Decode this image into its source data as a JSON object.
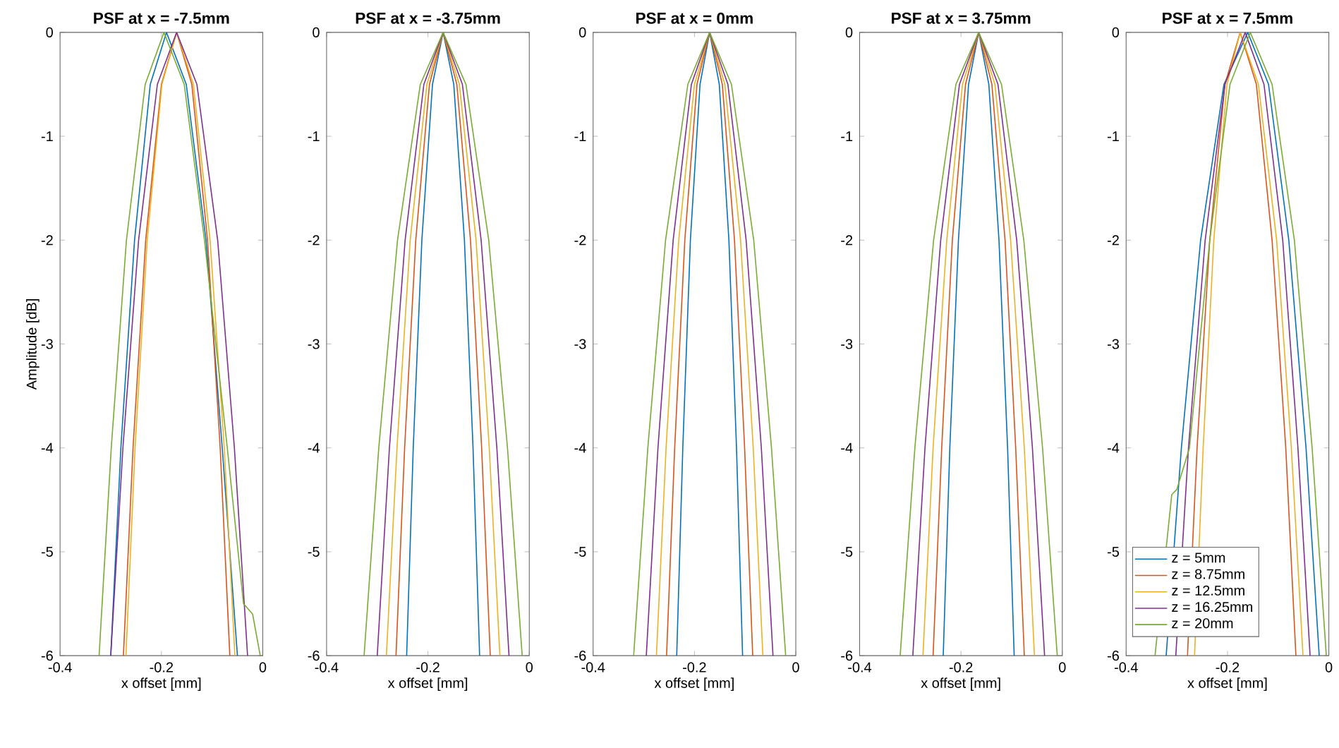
{
  "chart_data": [
    {
      "type": "line",
      "title": "PSF at x = -7.5mm",
      "xlabel": "x offset [mm]",
      "ylabel": "Amplitude [dB]",
      "xlim": [
        -0.4,
        0
      ],
      "ylim": [
        -6,
        0
      ],
      "xticks": [
        -0.4,
        -0.2,
        0
      ],
      "yticks": [
        -6,
        -5,
        -4,
        -3,
        -2,
        -1,
        0
      ],
      "series": [
        {
          "color": "#0072bd",
          "x": [
            -0.3,
            -0.28,
            -0.253,
            -0.222,
            -0.19,
            -0.151,
            -0.112,
            -0.08,
            -0.05
          ],
          "values": [
            -6,
            -4,
            -2,
            -0.5,
            0,
            -0.5,
            -2,
            -4,
            -6
          ]
        },
        {
          "color": "#d95319",
          "x": [
            -0.275,
            -0.256,
            -0.231,
            -0.2,
            -0.17,
            -0.14,
            -0.109,
            -0.084,
            -0.065
          ],
          "values": [
            -6,
            -4,
            -2,
            -0.5,
            0,
            -0.5,
            -2,
            -4,
            -6
          ]
        },
        {
          "color": "#edb120",
          "x": [
            -0.27,
            -0.252,
            -0.228,
            -0.199,
            -0.17,
            -0.137,
            -0.104,
            -0.076,
            -0.055
          ],
          "values": [
            -6,
            -4,
            -2,
            -0.5,
            0,
            -0.5,
            -2,
            -4,
            -6
          ]
        },
        {
          "color": "#7e2f8e",
          "x": [
            -0.3,
            -0.276,
            -0.245,
            -0.208,
            -0.17,
            -0.13,
            -0.089,
            -0.056,
            -0.03
          ],
          "values": [
            -6,
            -4,
            -2,
            -0.5,
            0,
            -0.5,
            -2,
            -4,
            -6
          ]
        },
        {
          "color": "#77ac30",
          "x": [
            -0.323,
            -0.299,
            -0.269,
            -0.232,
            -0.195,
            -0.155,
            -0.115,
            -0.07,
            -0.038,
            -0.02,
            -0.005
          ],
          "values": [
            -6,
            -4,
            -2,
            -0.5,
            0,
            -0.5,
            -2,
            -4,
            -5.5,
            -5.6,
            -6
          ]
        }
      ]
    },
    {
      "type": "line",
      "title": "PSF at x = -3.75mm",
      "xlabel": "x offset [mm]",
      "xlim": [
        -0.4,
        0
      ],
      "ylim": [
        -6,
        0
      ],
      "xticks": [
        -0.4,
        -0.2,
        0
      ],
      "yticks": [
        -6,
        -5,
        -4,
        -3,
        -2,
        -1,
        0
      ],
      "series": [
        {
          "color": "#0072bd",
          "x": [
            -0.242,
            -0.229,
            -0.212,
            -0.191,
            -0.17,
            -0.149,
            -0.128,
            -0.111,
            -0.098
          ],
          "values": [
            -6,
            -4,
            -2,
            -0.5,
            0,
            -0.5,
            -2,
            -4,
            -6
          ]
        },
        {
          "color": "#d95319",
          "x": [
            -0.263,
            -0.246,
            -0.224,
            -0.197,
            -0.17,
            -0.143,
            -0.116,
            -0.094,
            -0.077
          ],
          "values": [
            -6,
            -4,
            -2,
            -0.5,
            0,
            -0.5,
            -2,
            -4,
            -6
          ]
        },
        {
          "color": "#edb120",
          "x": [
            -0.282,
            -0.261,
            -0.235,
            -0.202,
            -0.17,
            -0.138,
            -0.105,
            -0.079,
            -0.058
          ],
          "values": [
            -6,
            -4,
            -2,
            -0.5,
            0,
            -0.5,
            -2,
            -4,
            -6
          ]
        },
        {
          "color": "#7e2f8e",
          "x": [
            -0.3,
            -0.276,
            -0.245,
            -0.208,
            -0.17,
            -0.132,
            -0.095,
            -0.064,
            -0.04
          ],
          "values": [
            -6,
            -4,
            -2,
            -0.5,
            0,
            -0.5,
            -2,
            -4,
            -6
          ]
        },
        {
          "color": "#77ac30",
          "x": [
            -0.326,
            -0.297,
            -0.26,
            -0.215,
            -0.17,
            -0.125,
            -0.08,
            -0.043,
            -0.014
          ],
          "values": [
            -6,
            -4,
            -2,
            -0.5,
            0,
            -0.5,
            -2,
            -4,
            -6
          ]
        }
      ]
    },
    {
      "type": "line",
      "title": "PSF at x = 0mm",
      "xlabel": "x offset [mm]",
      "xlim": [
        -0.4,
        0
      ],
      "ylim": [
        -6,
        0
      ],
      "xticks": [
        -0.4,
        -0.2,
        0
      ],
      "yticks": [
        -6,
        -5,
        -4,
        -3,
        -2,
        -1,
        0
      ],
      "series": [
        {
          "color": "#0072bd",
          "x": [
            -0.235,
            -0.223,
            -0.208,
            -0.189,
            -0.17,
            -0.151,
            -0.132,
            -0.117,
            -0.105
          ],
          "values": [
            -6,
            -4,
            -2,
            -0.5,
            0,
            -0.5,
            -2,
            -4,
            -6
          ]
        },
        {
          "color": "#d95319",
          "x": [
            -0.255,
            -0.239,
            -0.219,
            -0.195,
            -0.17,
            -0.145,
            -0.121,
            -0.101,
            -0.085
          ],
          "values": [
            -6,
            -4,
            -2,
            -0.5,
            0,
            -0.5,
            -2,
            -4,
            -6
          ]
        },
        {
          "color": "#edb120",
          "x": [
            -0.275,
            -0.256,
            -0.231,
            -0.2,
            -0.17,
            -0.14,
            -0.109,
            -0.084,
            -0.065
          ],
          "values": [
            -6,
            -4,
            -2,
            -0.5,
            0,
            -0.5,
            -2,
            -4,
            -6
          ]
        },
        {
          "color": "#7e2f8e",
          "x": [
            -0.295,
            -0.272,
            -0.242,
            -0.206,
            -0.17,
            -0.134,
            -0.098,
            -0.068,
            -0.045
          ],
          "values": [
            -6,
            -4,
            -2,
            -0.5,
            0,
            -0.5,
            -2,
            -4,
            -6
          ]
        },
        {
          "color": "#77ac30",
          "x": [
            -0.32,
            -0.292,
            -0.257,
            -0.213,
            -0.17,
            -0.127,
            -0.083,
            -0.048,
            -0.02
          ],
          "values": [
            -6,
            -4,
            -2,
            -0.5,
            0,
            -0.5,
            -2,
            -4,
            -6
          ]
        }
      ]
    },
    {
      "type": "line",
      "title": "PSF at x = 3.75mm",
      "xlabel": "x offset [mm]",
      "xlim": [
        -0.4,
        0
      ],
      "ylim": [
        -6,
        0
      ],
      "xticks": [
        -0.4,
        -0.2,
        0
      ],
      "yticks": [
        -6,
        -5,
        -4,
        -3,
        -2,
        -1,
        0
      ],
      "series": [
        {
          "color": "#0072bd",
          "x": [
            -0.235,
            -0.222,
            -0.205,
            -0.185,
            -0.165,
            -0.145,
            -0.125,
            -0.108,
            -0.095
          ],
          "values": [
            -6,
            -4,
            -2,
            -0.5,
            0,
            -0.5,
            -2,
            -4,
            -6
          ]
        },
        {
          "color": "#d95319",
          "x": [
            -0.255,
            -0.238,
            -0.217,
            -0.191,
            -0.165,
            -0.139,
            -0.113,
            -0.092,
            -0.075
          ],
          "values": [
            -6,
            -4,
            -2,
            -0.5,
            0,
            -0.5,
            -2,
            -4,
            -6
          ]
        },
        {
          "color": "#edb120",
          "x": [
            -0.275,
            -0.255,
            -0.228,
            -0.197,
            -0.165,
            -0.133,
            -0.102,
            -0.075,
            -0.055
          ],
          "values": [
            -6,
            -4,
            -2,
            -0.5,
            0,
            -0.5,
            -2,
            -4,
            -6
          ]
        },
        {
          "color": "#7e2f8e",
          "x": [
            -0.295,
            -0.271,
            -0.24,
            -0.203,
            -0.165,
            -0.127,
            -0.09,
            -0.059,
            -0.035
          ],
          "values": [
            -6,
            -4,
            -2,
            -0.5,
            0,
            -0.5,
            -2,
            -4,
            -6
          ]
        },
        {
          "color": "#77ac30",
          "x": [
            -0.32,
            -0.291,
            -0.254,
            -0.21,
            -0.165,
            -0.12,
            -0.076,
            -0.039,
            -0.01
          ],
          "values": [
            -6,
            -4,
            -2,
            -0.5,
            0,
            -0.5,
            -2,
            -4,
            -6
          ]
        }
      ]
    },
    {
      "type": "line",
      "title": "PSF at x = 7.5mm",
      "xlabel": "x offset [mm]",
      "xlim": [
        -0.4,
        0
      ],
      "ylim": [
        -6,
        0
      ],
      "xticks": [
        -0.4,
        -0.2,
        0
      ],
      "yticks": [
        -6,
        -5,
        -4,
        -3,
        -2,
        -1,
        0
      ],
      "legend": "bottom left",
      "series": [
        {
          "name": "z = 5mm",
          "color": "#0072bd",
          "x": [
            -0.321,
            -0.291,
            -0.253,
            -0.207,
            -0.16,
            -0.119,
            -0.079,
            -0.045,
            -0.019
          ],
          "values": [
            -6,
            -4,
            -2,
            -0.5,
            0,
            -0.5,
            -2,
            -4,
            -6
          ]
        },
        {
          "name": "z = 8.75mm",
          "color": "#d95319",
          "x": [
            -0.279,
            -0.26,
            -0.235,
            -0.205,
            -0.175,
            -0.143,
            -0.112,
            -0.085,
            -0.065
          ],
          "values": [
            -6,
            -4,
            -2,
            -0.5,
            0,
            -0.5,
            -2,
            -4,
            -6
          ]
        },
        {
          "name": "z = 12.5mm",
          "color": "#edb120",
          "x": [
            -0.265,
            -0.248,
            -0.227,
            -0.201,
            -0.175,
            -0.139,
            -0.103,
            -0.074,
            -0.051
          ],
          "values": [
            -6,
            -4,
            -2,
            -0.5,
            0,
            -0.5,
            -2,
            -4,
            -6
          ]
        },
        {
          "name": "z = 16.25mm",
          "color": "#7e2f8e",
          "x": [
            -0.302,
            -0.277,
            -0.244,
            -0.205,
            -0.165,
            -0.128,
            -0.091,
            -0.061,
            -0.037
          ],
          "values": [
            -6,
            -4,
            -2,
            -0.5,
            0,
            -0.5,
            -2,
            -4,
            -6
          ]
        },
        {
          "name": "z = 20mm",
          "color": "#77ac30",
          "x": [
            -0.343,
            -0.335,
            -0.31,
            -0.3,
            -0.275,
            -0.235,
            -0.195,
            -0.155,
            -0.112,
            -0.068,
            -0.033,
            -0.005
          ],
          "values": [
            -6,
            null,
            -4.45,
            -4.4,
            -4,
            -2,
            -0.5,
            0,
            -0.5,
            -2,
            -4,
            -6
          ]
        }
      ]
    }
  ]
}
